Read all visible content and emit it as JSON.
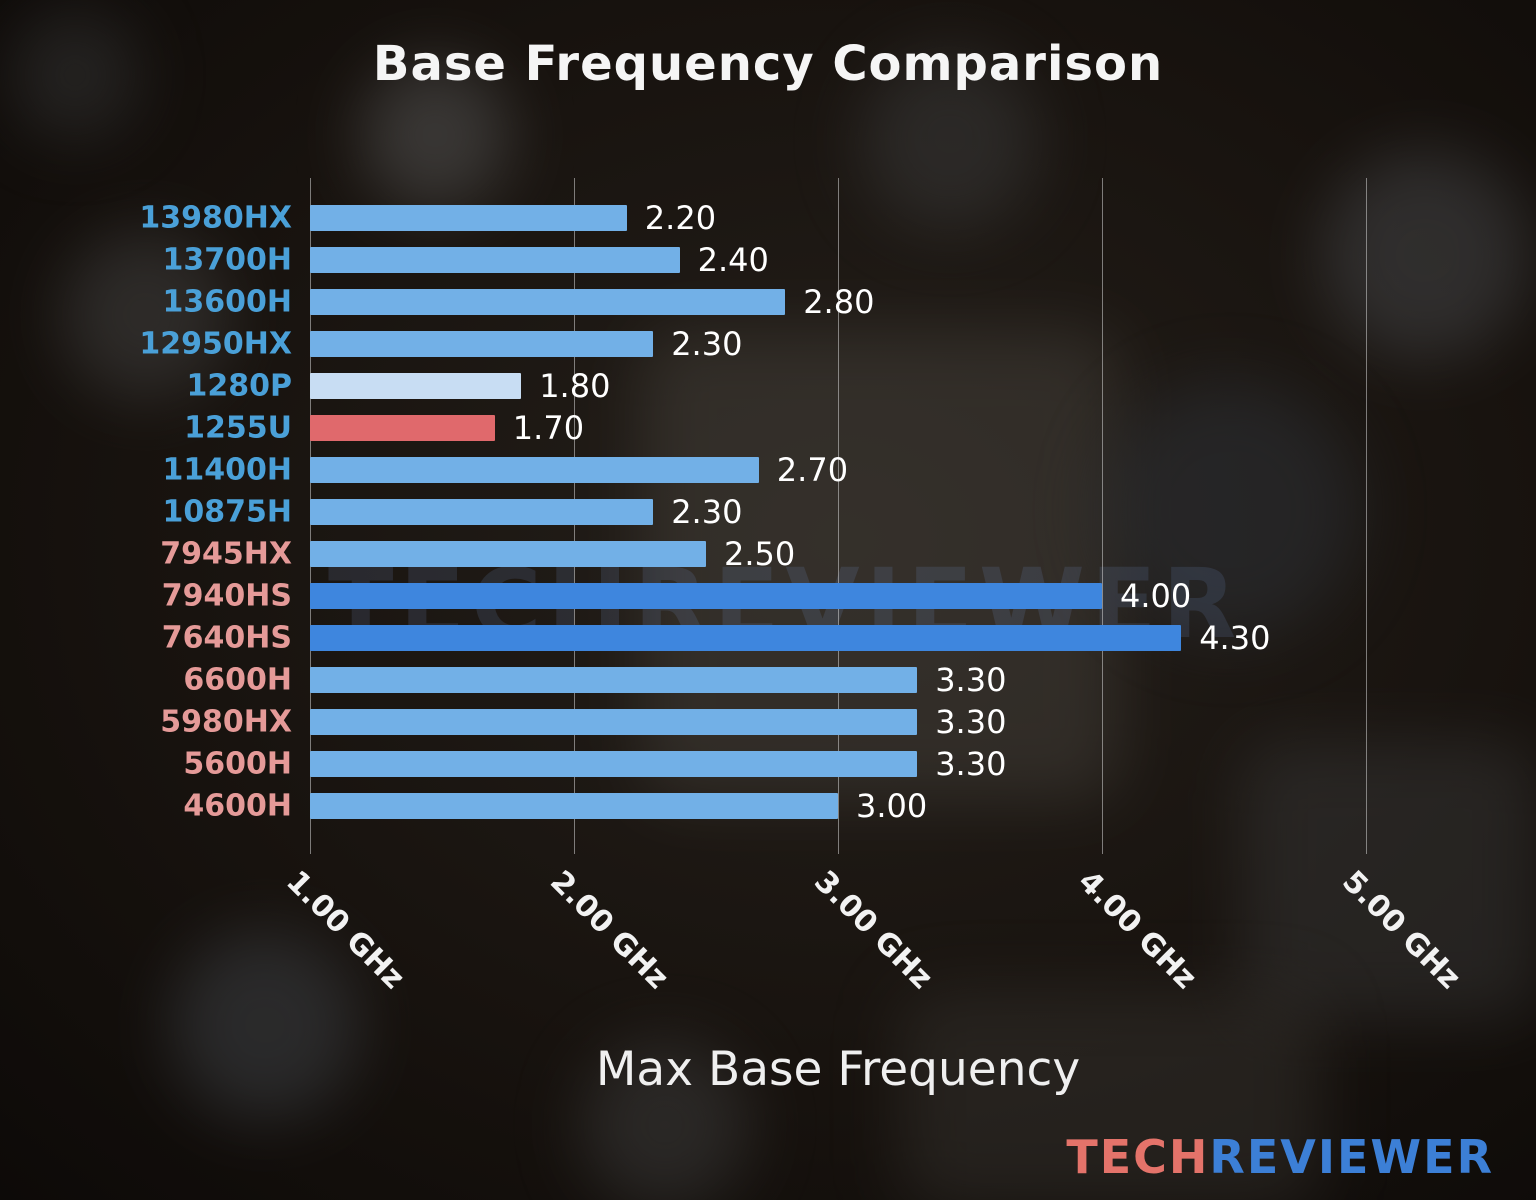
{
  "title": "Base Frequency Comparison",
  "xlabel": "Max Base Frequency",
  "watermark": {
    "text": "TECHREVIEWER"
  },
  "logo": {
    "part1": "TECH",
    "part2": "REVIEWER"
  },
  "colors": {
    "bar_blue": "#72b0e7",
    "bar_lightblue": "#c8ddf3",
    "bar_red": "#e0696c",
    "bar_darkblue": "#3e86de",
    "label_intel": "#4aa0d8",
    "label_amd": "#e59a98",
    "value_text": "#ffffff",
    "gridline": "#d2d2d2"
  },
  "chart_data": {
    "type": "bar",
    "orientation": "horizontal",
    "title": "Base Frequency Comparison",
    "xlabel": "Max Base Frequency",
    "ylabel": "",
    "xlim": [
      1.0,
      5.5
    ],
    "grid": "vertical",
    "unit": "GHz",
    "categories": [
      "13980HX",
      "13700H",
      "13600H",
      "12950HX",
      "1280P",
      "1255U",
      "11400H",
      "10875H",
      "7945HX",
      "7940HS",
      "7640HS",
      "6600H",
      "5980HX",
      "5600H",
      "4600H"
    ],
    "values": [
      2.2,
      2.4,
      2.8,
      2.3,
      1.8,
      1.7,
      2.7,
      2.3,
      2.5,
      4.0,
      4.3,
      3.3,
      3.3,
      3.3,
      3.0
    ],
    "bar_color_keys": [
      "bar_blue",
      "bar_blue",
      "bar_blue",
      "bar_blue",
      "bar_lightblue",
      "bar_red",
      "bar_blue",
      "bar_blue",
      "bar_blue",
      "bar_darkblue",
      "bar_darkblue",
      "bar_blue",
      "bar_blue",
      "bar_blue",
      "bar_blue"
    ],
    "label_color_keys": [
      "label_intel",
      "label_intel",
      "label_intel",
      "label_intel",
      "label_intel",
      "label_intel",
      "label_intel",
      "label_intel",
      "label_amd",
      "label_amd",
      "label_amd",
      "label_amd",
      "label_amd",
      "label_amd",
      "label_amd"
    ],
    "x_ticks": [
      {
        "value": 1.0,
        "label": "1.00 GHz"
      },
      {
        "value": 2.0,
        "label": "2.00 GHz"
      },
      {
        "value": 3.0,
        "label": "3.00 GHz"
      },
      {
        "value": 4.0,
        "label": "4.00 GHz"
      },
      {
        "value": 5.0,
        "label": "5.00 GHz"
      }
    ]
  }
}
